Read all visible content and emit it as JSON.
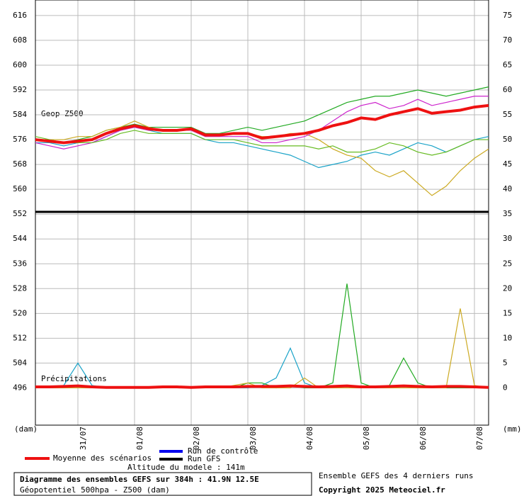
{
  "chart_data": {
    "type": "line",
    "x": [
      0,
      6,
      12,
      18,
      24,
      30,
      36,
      42,
      48,
      54,
      60,
      66,
      72,
      78,
      84,
      90,
      96,
      102,
      108,
      114,
      120,
      126,
      132,
      138,
      144,
      150,
      156,
      162,
      168,
      174,
      180,
      186,
      192
    ],
    "xlim": [
      0,
      192
    ],
    "xticks": [
      {
        "value": 18,
        "label": "31/07"
      },
      {
        "value": 42,
        "label": "01/08"
      },
      {
        "value": 66,
        "label": "02/08"
      },
      {
        "value": 90,
        "label": "03/08"
      },
      {
        "value": 114,
        "label": "04/08"
      },
      {
        "value": 138,
        "label": "05/08"
      },
      {
        "value": 162,
        "label": "06/08"
      },
      {
        "value": 186,
        "label": "07/08"
      }
    ],
    "ylim": [
      484,
      621
    ],
    "yticks": [
      496,
      504,
      512,
      520,
      528,
      536,
      544,
      552,
      560,
      568,
      576,
      584,
      592,
      600,
      608,
      616
    ],
    "y2lim": [
      -7.5,
      78.125
    ],
    "y2ticks": [
      0,
      5,
      10,
      15,
      20,
      25,
      30,
      35,
      40,
      45,
      50,
      55,
      60,
      65,
      70,
      75
    ],
    "grid": true,
    "y_unit": "(dam)",
    "y2_unit": "(mm)",
    "panel_labels": [
      "Geop Z500",
      "Précipitations"
    ],
    "series": [
      {
        "color": "#22aa22",
        "values": [
          576,
          576,
          575,
          576,
          577,
          579,
          580,
          581,
          580,
          580,
          580,
          580,
          578,
          578,
          579,
          580,
          579,
          580,
          581,
          582,
          584,
          586,
          588,
          589,
          590,
          590,
          591,
          592,
          591,
          590,
          591,
          592,
          593
        ]
      },
      {
        "color": "#1aa3c8",
        "values": [
          575,
          575,
          574,
          575,
          575,
          577,
          579,
          580,
          579,
          578,
          578,
          578,
          576,
          575,
          575,
          574,
          573,
          572,
          571,
          569,
          567,
          568,
          569,
          571,
          572,
          571,
          573,
          575,
          574,
          572,
          574,
          576,
          577
        ]
      },
      {
        "color": "#ccaa22",
        "values": [
          576,
          576,
          576,
          577,
          577,
          579,
          580,
          582,
          580,
          579,
          579,
          579,
          577,
          577,
          578,
          578,
          577,
          577,
          578,
          578,
          576,
          573,
          571,
          570,
          566,
          564,
          566,
          562,
          558,
          561,
          566,
          570,
          573
        ]
      },
      {
        "color": "#cc22cc",
        "values": [
          575,
          574,
          573,
          574,
          575,
          577,
          579,
          580,
          579,
          579,
          579,
          579,
          577,
          577,
          577,
          577,
          575,
          575,
          576,
          577,
          579,
          582,
          585,
          587,
          588,
          586,
          587,
          589,
          587,
          588,
          589,
          590,
          590
        ]
      },
      {
        "color": "#66bb22",
        "values": [
          577,
          576,
          575,
          575,
          575,
          576,
          578,
          579,
          578,
          578,
          578,
          578,
          576,
          576,
          576,
          575,
          574,
          574,
          574,
          574,
          573,
          574,
          572,
          572,
          573,
          575,
          574,
          572,
          571,
          572,
          574,
          576,
          576
        ]
      },
      {
        "color": "#ee1111",
        "width": 4,
        "values": [
          576,
          575.5,
          575,
          575.5,
          576,
          578,
          579.5,
          580.5,
          579.5,
          579,
          579,
          579.5,
          577.5,
          577.5,
          578,
          578,
          576.5,
          577,
          577.5,
          578,
          579,
          580.5,
          581.5,
          583,
          582.5,
          584,
          585,
          586,
          584.5,
          585,
          585.5,
          586.5,
          587
        ]
      },
      {
        "color": "#1aa3c8",
        "axis": "y2",
        "values": [
          0,
          0,
          0.5,
          5,
          0.5,
          0,
          0,
          0,
          0,
          0,
          0,
          0,
          0,
          0,
          0,
          0,
          0.5,
          2,
          8,
          1,
          0,
          0,
          0,
          0,
          0,
          0,
          0,
          0,
          0,
          0,
          0,
          0,
          0
        ]
      },
      {
        "color": "#22aa22",
        "axis": "y2",
        "values": [
          0,
          0,
          0,
          0,
          0,
          0,
          0,
          0,
          0,
          0,
          0,
          0,
          0,
          0,
          0,
          1,
          1,
          0,
          0.5,
          0,
          0,
          1,
          21,
          1,
          0,
          0.5,
          6,
          1,
          0,
          0,
          0,
          0,
          0
        ]
      },
      {
        "color": "#ccaa22",
        "axis": "y2",
        "values": [
          0,
          0,
          0,
          0,
          0,
          0,
          0,
          0,
          0,
          0,
          0,
          0,
          0,
          0,
          0.5,
          1,
          0,
          0,
          0,
          2,
          0,
          0,
          0,
          0,
          0,
          0,
          0,
          0,
          0,
          0,
          16,
          0.5,
          0
        ]
      },
      {
        "color": "#ee1111",
        "axis": "y2",
        "width": 4,
        "values": [
          0.2,
          0.2,
          0.3,
          0.4,
          0.2,
          0.1,
          0.1,
          0.1,
          0.1,
          0.2,
          0.2,
          0.1,
          0.2,
          0.2,
          0.2,
          0.3,
          0.3,
          0.3,
          0.4,
          0.3,
          0.2,
          0.3,
          0.4,
          0.2,
          0.2,
          0.3,
          0.4,
          0.3,
          0.2,
          0.3,
          0.3,
          0.2,
          0.1
        ]
      }
    ],
    "legend": [
      {
        "name": "Moyenne des scénarios",
        "color": "#ee1111"
      },
      {
        "name": "Run de contrôle",
        "color": "#0000ee"
      },
      {
        "name": "Run GFS",
        "color": "#000000"
      }
    ],
    "altitude": "Altitude du modele : 141m",
    "title": "Diagramme des ensembles GEFS sur 384h : 41.9N 12.5E",
    "subtitle": "Géopotentiel 500hpa - Z500 (dam)",
    "note": "Ensemble GEFS des 4 derniers runs",
    "copyright": "Copyright 2025 Meteociel.fr"
  }
}
